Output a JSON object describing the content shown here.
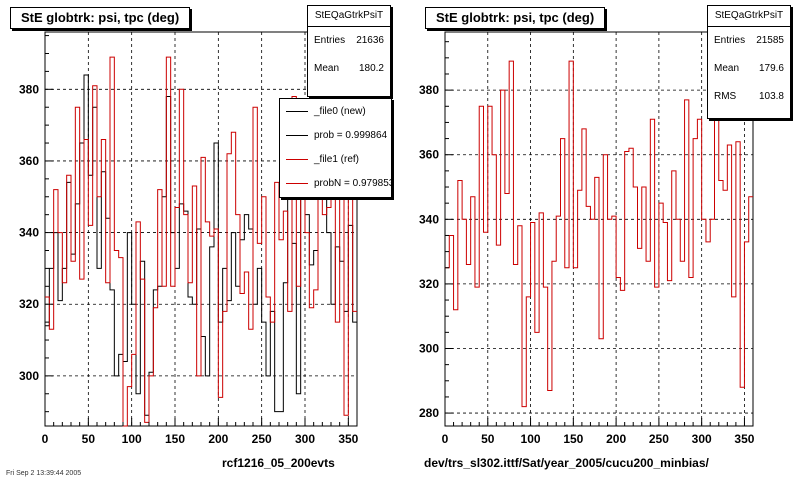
{
  "colors": {
    "new": "#000000",
    "ref": "#cc0000",
    "grid": "#000000"
  },
  "left_panel": {
    "title": "StE globtrk: psi, tpc (deg)",
    "footer": "rcf1216_05_200evts",
    "stats": {
      "name": "StEQaGtrkPsiT",
      "entries_label": "Entries",
      "entries": "21636",
      "mean_label": "Mean",
      "mean": "180.2"
    },
    "legend": [
      {
        "label": "_file0 (new)",
        "color": "#000000"
      },
      {
        "label": "prob = 0.999864",
        "color": "#000000"
      },
      {
        "label": "_file1 (ref)",
        "color": "#cc0000"
      },
      {
        "label": "probN = 0.979853",
        "color": "#cc0000"
      }
    ]
  },
  "right_panel": {
    "title": "StE globtrk: psi, tpc (deg)",
    "footer": "dev/trs_sl302.ittf/Sat/year_2005/cucu200_minbias/",
    "stats": {
      "name": "StEQaGtrkPsiT",
      "entries_label": "Entries",
      "entries": "21585",
      "mean_label": "Mean",
      "mean": "179.6",
      "rms_label": "RMS",
      "rms": "103.8"
    }
  },
  "corner_text": "Fri Sep 2 13:39:44 2005",
  "chart_data": [
    {
      "type": "line",
      "title": "StE globtrk: psi, tpc (deg)",
      "xlabel": "",
      "ylabel": "",
      "xlim": [
        0,
        360
      ],
      "ylim": [
        286,
        396
      ],
      "xticks": [
        0,
        50,
        100,
        150,
        200,
        250,
        300,
        350
      ],
      "yticks": [
        300,
        320,
        340,
        360,
        380
      ],
      "grid": true,
      "bin_width": 5,
      "series": [
        {
          "name": "_file0 (new)",
          "color": "#000000",
          "values": [
            314,
            330,
            340,
            321,
            330,
            354,
            334,
            348,
            365,
            384,
            356,
            375,
            330,
            357,
            344,
            324,
            300,
            306,
            304,
            340,
            320,
            295,
            332,
            289,
            301,
            324,
            325,
            350,
            378,
            340,
            330,
            348,
            346,
            322,
            320,
            341,
            311,
            300,
            336,
            365,
            315,
            330,
            321,
            340,
            325,
            338,
            345,
            341,
            320,
            330,
            315,
            300,
            318,
            290,
            290,
            326,
            350,
            337,
            295,
            365,
            345,
            331,
            335,
            375,
            355,
            340,
            320,
            336,
            332,
            318,
            342,
            315
          ]
        },
        {
          "name": "_file1 (ref)",
          "color": "#cc0000",
          "values": [
            322,
            313,
            352,
            340,
            326,
            356,
            332,
            375,
            327,
            366,
            342,
            381,
            350,
            366,
            326,
            389,
            335,
            333,
            283,
            297,
            306,
            343,
            327,
            287,
            300,
            319,
            352,
            325,
            389,
            325,
            347,
            380,
            345,
            326,
            353,
            300,
            361,
            343,
            339,
            341,
            294,
            318,
            362,
            368,
            345,
            323,
            329,
            313,
            375,
            337,
            350,
            322,
            315,
            354,
            338,
            346,
            318,
            378,
            325,
            370,
            340,
            319,
            324,
            380,
            345,
            347,
            361,
            315,
            355,
            289,
            364,
            318
          ]
        }
      ]
    },
    {
      "type": "line",
      "title": "StE globtrk: psi, tpc (deg)",
      "xlabel": "",
      "ylabel": "",
      "xlim": [
        0,
        360
      ],
      "ylim": [
        276,
        398
      ],
      "xticks": [
        0,
        50,
        100,
        150,
        200,
        250,
        300,
        350
      ],
      "yticks": [
        280,
        300,
        320,
        340,
        360,
        380
      ],
      "grid": true,
      "bin_width": 5,
      "series": [
        {
          "name": "_file1 (ref)",
          "color": "#cc0000",
          "values": [
            325,
            335,
            312,
            352,
            340,
            326,
            347,
            319,
            375,
            336,
            375,
            360,
            332,
            380,
            348,
            389,
            326,
            338,
            282,
            316,
            339,
            305,
            342,
            319,
            287,
            327,
            341,
            365,
            325,
            389,
            325,
            349,
            368,
            344,
            340,
            353,
            303,
            360,
            340,
            341,
            322,
            318,
            361,
            362,
            350,
            331,
            350,
            327,
            371,
            319,
            345,
            339,
            321,
            355,
            340,
            327,
            377,
            322,
            365,
            371,
            340,
            333,
            340,
            376,
            352,
            349,
            363,
            316,
            364,
            288,
            333,
            347
          ]
        }
      ]
    }
  ]
}
